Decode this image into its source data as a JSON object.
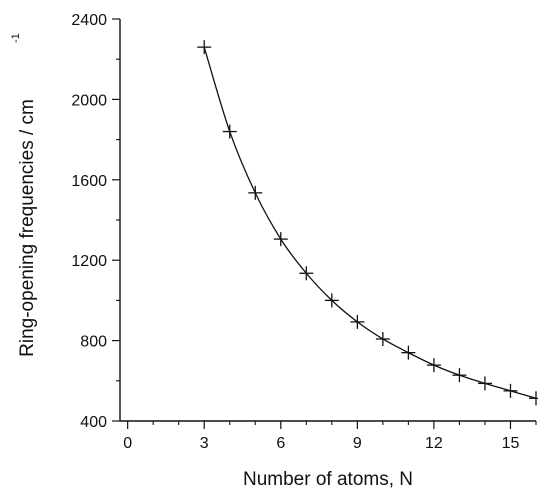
{
  "chart_data": {
    "type": "line",
    "title": "",
    "xlabel": "Number of atoms, N",
    "ylabel": "Ring-opening frequencies / cm",
    "ylabel_superscript": "-1",
    "xlim": [
      -0.3,
      16
    ],
    "ylim": [
      400,
      2400
    ],
    "xticks": [
      0,
      3,
      6,
      9,
      12,
      15
    ],
    "yticks": [
      400,
      800,
      1200,
      1600,
      2000,
      2400
    ],
    "x_minor_ticks": [
      1,
      2,
      4,
      5,
      7,
      8,
      10,
      11,
      13,
      14,
      16
    ],
    "y_minor_ticks": [
      600,
      1000,
      1400,
      1800,
      2200
    ],
    "grid": false,
    "series": [
      {
        "marker": "plus",
        "line": "smooth",
        "color": "#111111",
        "points": [
          {
            "x": 3,
            "y": 2260
          },
          {
            "x": 4,
            "y": 1840
          },
          {
            "x": 5,
            "y": 1535
          },
          {
            "x": 6,
            "y": 1305
          },
          {
            "x": 7,
            "y": 1135
          },
          {
            "x": 8,
            "y": 1000
          },
          {
            "x": 9,
            "y": 893
          },
          {
            "x": 10,
            "y": 808
          },
          {
            "x": 11,
            "y": 740
          },
          {
            "x": 12,
            "y": 678
          },
          {
            "x": 13,
            "y": 628
          },
          {
            "x": 14,
            "y": 587
          },
          {
            "x": 15,
            "y": 550
          },
          {
            "x": 16,
            "y": 513
          }
        ]
      }
    ]
  }
}
